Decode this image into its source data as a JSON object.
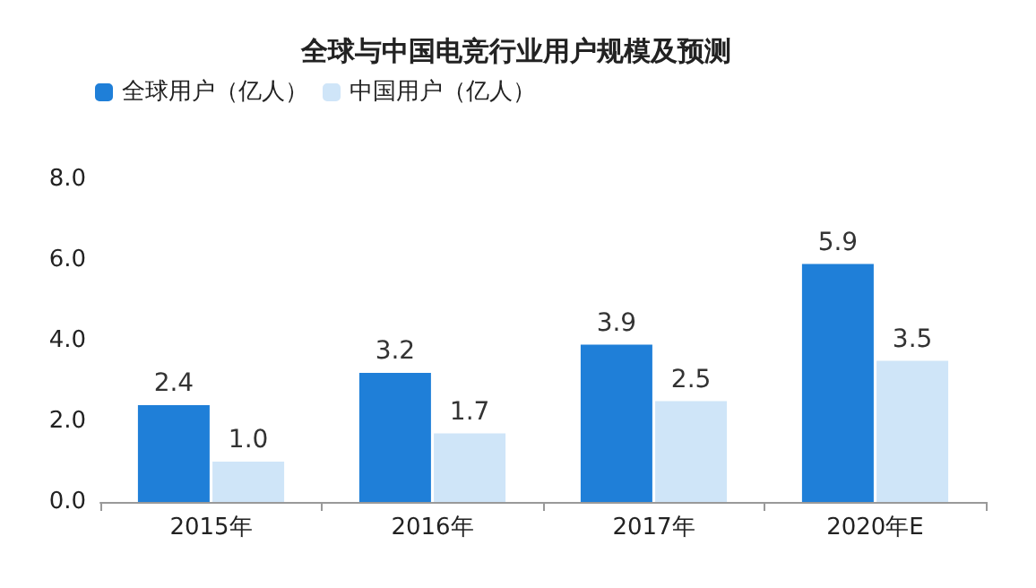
{
  "chart_data": {
    "type": "bar",
    "title": "全球与中国电竞行业用户规模及预测",
    "categories": [
      "2015年",
      "2016年",
      "2017年",
      "2020年E"
    ],
    "series": [
      {
        "name": "全球用户（亿人）",
        "color": "#1f7fd8",
        "values": [
          2.4,
          3.2,
          3.9,
          5.9
        ],
        "value_labels": [
          "2.4",
          "3.2",
          "3.9",
          "5.9"
        ]
      },
      {
        "name": "中国用户（亿人）",
        "color": "#cfe5f8",
        "values": [
          1.0,
          1.7,
          2.5,
          3.5
        ],
        "value_labels": [
          "1.0",
          "1.7",
          "2.5",
          "3.5"
        ]
      }
    ],
    "ylim": [
      0,
      8
    ],
    "yticks": [
      {
        "value": 0,
        "label": "0.0"
      },
      {
        "value": 2,
        "label": "2.0"
      },
      {
        "value": 4,
        "label": "4.0"
      },
      {
        "value": 6,
        "label": "6.0"
      },
      {
        "value": 8,
        "label": "8.0"
      }
    ],
    "grid": false,
    "legend": "top left"
  }
}
